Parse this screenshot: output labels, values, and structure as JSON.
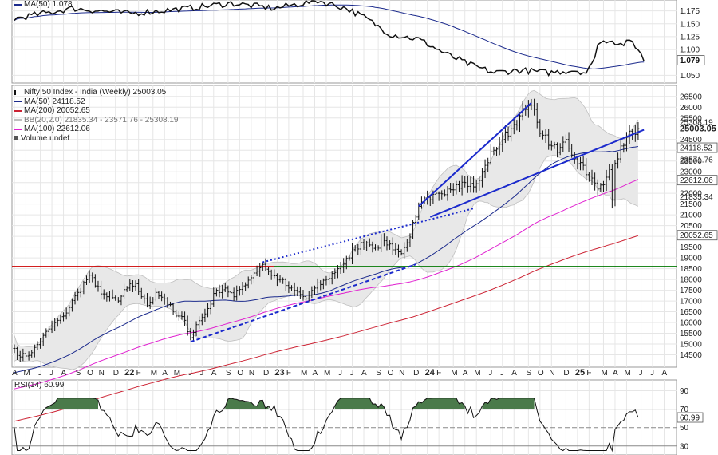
{
  "colors": {
    "ma50": "#1b2a8c",
    "ma200": "#cc2233",
    "ma100": "#e020d0",
    "bband": "#bfbfbf",
    "bbfill": "#e8e8e8",
    "price": "#111111",
    "trendline": "#1b2acc",
    "resistance": "#cc0000",
    "support": "#007700",
    "rsi_fill": "#4a7a4a",
    "grid": "#e6e6e6"
  },
  "top_panel": {
    "legend": "MA(50) 1.078",
    "y_ticks": [
      "1.175",
      "1.150",
      "1.125",
      "1.100",
      "1.050"
    ],
    "last_value": "1.079"
  },
  "main_panel": {
    "legend": [
      {
        "text": "Nifty 50 Index - India (Weekly) 25003.05",
        "color": "#111111",
        "key": "price"
      },
      {
        "text": "MA(50) 24118.52",
        "color": "#1b2a8c",
        "key": "line"
      },
      {
        "text": "MA(200) 20052.65",
        "color": "#cc2233",
        "key": "line"
      },
      {
        "text": "BB(20,2.0) 21835.34 - 23571.76 - 25308.19",
        "color": "#bfbfbf",
        "key": "line"
      },
      {
        "text": "MA(100) 22612.06",
        "color": "#e020d0",
        "key": "line"
      },
      {
        "text": "Volume undef",
        "color": "#555555",
        "key": "bars"
      }
    ],
    "y_ticks": [
      "26500",
      "26000",
      "25500",
      "24500",
      "24000",
      "23500",
      "23000",
      "22500",
      "22000",
      "21500",
      "21000",
      "20500",
      "20000",
      "19500",
      "19000",
      "18500",
      "18000",
      "17500",
      "17000",
      "16500",
      "16000",
      "15500",
      "15000",
      "14500"
    ],
    "value_tags": [
      {
        "text": "25308.19",
        "y": 25308.19,
        "style": "plain"
      },
      {
        "text": "25003.05",
        "y": 25003.05,
        "style": "bold"
      },
      {
        "text": "24118.52",
        "y": 24118.52,
        "style": "box"
      },
      {
        "text": "23571.76",
        "y": 23571.76,
        "style": "plain"
      },
      {
        "text": "22612.06",
        "y": 22612.06,
        "style": "box"
      },
      {
        "text": "21835.34",
        "y": 21835.34,
        "style": "plain"
      },
      {
        "text": "20052.65",
        "y": 20052.65,
        "style": "box"
      }
    ],
    "ylim": [
      14000,
      26900
    ]
  },
  "x_axis": {
    "labels": [
      {
        "t": "A",
        "w": 0
      },
      {
        "t": "M",
        "w": 4
      },
      {
        "t": "J",
        "w": 9
      },
      {
        "t": "J",
        "w": 13
      },
      {
        "t": "A",
        "w": 17
      },
      {
        "t": "S",
        "w": 22
      },
      {
        "t": "O",
        "w": 26
      },
      {
        "t": "N",
        "w": 30
      },
      {
        "t": "D",
        "w": 35
      },
      {
        "t": "22",
        "w": 39,
        "bold": true
      },
      {
        "t": "F",
        "w": 43
      },
      {
        "t": "M",
        "w": 48
      },
      {
        "t": "A",
        "w": 52
      },
      {
        "t": "M",
        "w": 56
      },
      {
        "t": "J",
        "w": 61
      },
      {
        "t": "J",
        "w": 65
      },
      {
        "t": "A",
        "w": 69
      },
      {
        "t": "S",
        "w": 74
      },
      {
        "t": "O",
        "w": 78
      },
      {
        "t": "N",
        "w": 82
      },
      {
        "t": "D",
        "w": 87
      },
      {
        "t": "23",
        "w": 91,
        "bold": true
      },
      {
        "t": "F",
        "w": 95
      },
      {
        "t": "M",
        "w": 100
      },
      {
        "t": "A",
        "w": 104
      },
      {
        "t": "M",
        "w": 108
      },
      {
        "t": "J",
        "w": 113
      },
      {
        "t": "J",
        "w": 117
      },
      {
        "t": "A",
        "w": 121
      },
      {
        "t": "S",
        "w": 126
      },
      {
        "t": "O",
        "w": 130
      },
      {
        "t": "N",
        "w": 134
      },
      {
        "t": "D",
        "w": 139
      },
      {
        "t": "24",
        "w": 143,
        "bold": true
      },
      {
        "t": "F",
        "w": 147
      },
      {
        "t": "M",
        "w": 152
      },
      {
        "t": "A",
        "w": 156
      },
      {
        "t": "M",
        "w": 160
      },
      {
        "t": "J",
        "w": 165
      },
      {
        "t": "J",
        "w": 169
      },
      {
        "t": "A",
        "w": 173
      },
      {
        "t": "S",
        "w": 178
      },
      {
        "t": "O",
        "w": 182
      },
      {
        "t": "N",
        "w": 186
      },
      {
        "t": "D",
        "w": 191
      },
      {
        "t": "25",
        "w": 195,
        "bold": true
      },
      {
        "t": "F",
        "w": 199
      },
      {
        "t": "M",
        "w": 204
      },
      {
        "t": "A",
        "w": 208
      },
      {
        "t": "M",
        "w": 212
      },
      {
        "t": "J",
        "w": 217
      },
      {
        "t": "J",
        "w": 221
      },
      {
        "t": "A",
        "w": 225
      }
    ]
  },
  "rsi_panel": {
    "legend": "RSI(14) 60.99",
    "y_ticks": [
      "90",
      "70",
      "50",
      "30"
    ],
    "last_value": "60.99",
    "ylim": [
      22,
      100
    ]
  },
  "chart_data": {
    "type": "line",
    "title": "Nifty 50 Index - India (Weekly)",
    "timeframe": "weekly",
    "start": "2021-04",
    "end": "2025-06",
    "last_close": 25003.05,
    "anchors": [
      {
        "w": 0,
        "v": 14800
      },
      {
        "w": 2,
        "v": 14400
      },
      {
        "w": 6,
        "v": 14600
      },
      {
        "w": 12,
        "v": 15700
      },
      {
        "w": 17,
        "v": 16300
      },
      {
        "w": 22,
        "v": 17400
      },
      {
        "w": 26,
        "v": 18200
      },
      {
        "w": 28,
        "v": 17700
      },
      {
        "w": 32,
        "v": 17200
      },
      {
        "w": 36,
        "v": 17000
      },
      {
        "w": 39,
        "v": 17600
      },
      {
        "w": 42,
        "v": 17800
      },
      {
        "w": 44,
        "v": 17200
      },
      {
        "w": 46,
        "v": 16800
      },
      {
        "w": 49,
        "v": 17400
      },
      {
        "w": 52,
        "v": 17100
      },
      {
        "w": 56,
        "v": 16300
      },
      {
        "w": 59,
        "v": 16100
      },
      {
        "w": 61,
        "v": 15300
      },
      {
        "w": 63,
        "v": 15900
      },
      {
        "w": 66,
        "v": 16400
      },
      {
        "w": 70,
        "v": 17500
      },
      {
        "w": 73,
        "v": 17600
      },
      {
        "w": 76,
        "v": 17200
      },
      {
        "w": 79,
        "v": 17700
      },
      {
        "w": 83,
        "v": 18300
      },
      {
        "w": 86,
        "v": 18700
      },
      {
        "w": 89,
        "v": 18200
      },
      {
        "w": 92,
        "v": 18000
      },
      {
        "w": 95,
        "v": 17600
      },
      {
        "w": 99,
        "v": 17300
      },
      {
        "w": 101,
        "v": 17100
      },
      {
        "w": 104,
        "v": 17600
      },
      {
        "w": 108,
        "v": 18000
      },
      {
        "w": 112,
        "v": 18500
      },
      {
        "w": 116,
        "v": 19000
      },
      {
        "w": 118,
        "v": 19500
      },
      {
        "w": 122,
        "v": 19700
      },
      {
        "w": 125,
        "v": 19500
      },
      {
        "w": 128,
        "v": 19800
      },
      {
        "w": 132,
        "v": 19400
      },
      {
        "w": 134,
        "v": 19200
      },
      {
        "w": 136,
        "v": 19700
      },
      {
        "w": 139,
        "v": 20900
      },
      {
        "w": 141,
        "v": 21600
      },
      {
        "w": 144,
        "v": 21700
      },
      {
        "w": 147,
        "v": 22000
      },
      {
        "w": 150,
        "v": 22200
      },
      {
        "w": 153,
        "v": 22400
      },
      {
        "w": 156,
        "v": 22500
      },
      {
        "w": 159,
        "v": 22300
      },
      {
        "w": 161,
        "v": 22600
      },
      {
        "w": 163,
        "v": 23300
      },
      {
        "w": 166,
        "v": 24000
      },
      {
        "w": 169,
        "v": 24500
      },
      {
        "w": 172,
        "v": 25000
      },
      {
        "w": 175,
        "v": 25600
      },
      {
        "w": 177,
        "v": 25900
      },
      {
        "w": 179,
        "v": 26100
      },
      {
        "w": 181,
        "v": 25300
      },
      {
        "w": 183,
        "v": 24700
      },
      {
        "w": 186,
        "v": 24200
      },
      {
        "w": 188,
        "v": 23900
      },
      {
        "w": 191,
        "v": 24500
      },
      {
        "w": 194,
        "v": 23600
      },
      {
        "w": 197,
        "v": 23300
      },
      {
        "w": 199,
        "v": 22800
      },
      {
        "w": 202,
        "v": 22200
      },
      {
        "w": 204,
        "v": 22400
      },
      {
        "w": 206,
        "v": 23100
      },
      {
        "w": 207,
        "v": 21700
      },
      {
        "w": 208,
        "v": 23400
      },
      {
        "w": 210,
        "v": 24200
      },
      {
        "w": 212,
        "v": 24600
      },
      {
        "w": 214,
        "v": 24800
      },
      {
        "w": 216,
        "v": 25003
      }
    ],
    "overlays": {
      "resistance_level": 18600,
      "support_level": 18600,
      "trendlines": [
        {
          "w1": 61,
          "v1": 15100,
          "w2": 139,
          "v2": 18700,
          "style": "dashed"
        },
        {
          "w1": 86,
          "v1": 18800,
          "w2": 159,
          "v2": 21300,
          "style": "dotted"
        },
        {
          "w1": 140,
          "v1": 21400,
          "w2": 179,
          "v2": 26200,
          "style": "solid"
        },
        {
          "w1": 144,
          "v1": 20900,
          "w2": 218,
          "v2": 24950,
          "style": "solid"
        }
      ]
    }
  }
}
